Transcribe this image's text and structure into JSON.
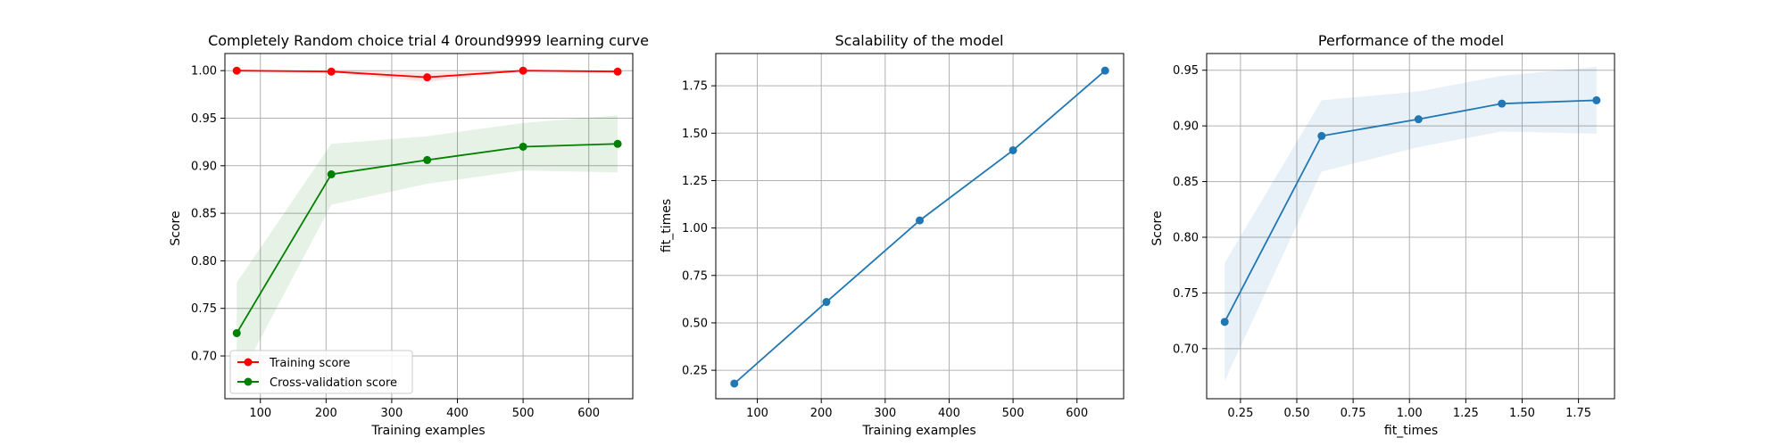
{
  "chart_data": [
    {
      "type": "line",
      "title": "Completely Random choice trial 4 0round9999 learning curve",
      "xlabel": "Training examples",
      "ylabel": "Score",
      "xlim": [
        46,
        667
      ],
      "ylim": [
        0.655,
        1.018
      ],
      "xticks": [
        100,
        200,
        300,
        400,
        500,
        600
      ],
      "xtick_labels": [
        "100",
        "200",
        "300",
        "400",
        "500",
        "600"
      ],
      "yticks": [
        0.7,
        0.75,
        0.8,
        0.85,
        0.9,
        0.95,
        1.0
      ],
      "ytick_labels": [
        "0.70",
        "0.75",
        "0.80",
        "0.85",
        "0.90",
        "0.95",
        "1.00"
      ],
      "grid": true,
      "legend": "lower-left",
      "series": [
        {
          "name": "Training score",
          "color": "#ff0000",
          "x": [
            64,
            208,
            354,
            500,
            644
          ],
          "y": [
            1.0,
            0.999,
            0.993,
            1.0,
            0.999
          ],
          "band_low": [
            1.0,
            0.998,
            0.988,
            1.0,
            0.999
          ],
          "band_high": [
            1.0,
            1.0,
            0.998,
            1.0,
            1.0
          ]
        },
        {
          "name": "Cross-validation score",
          "color": "#008000",
          "x": [
            64,
            208,
            354,
            500,
            644
          ],
          "y": [
            0.724,
            0.891,
            0.906,
            0.92,
            0.923
          ],
          "band_low": [
            0.671,
            0.859,
            0.881,
            0.895,
            0.893
          ],
          "band_high": [
            0.777,
            0.923,
            0.931,
            0.945,
            0.953
          ]
        }
      ]
    },
    {
      "type": "line",
      "title": "Scalability of the model",
      "xlabel": "Training examples",
      "ylabel": "fit_times",
      "xlim": [
        35,
        673
      ],
      "ylim": [
        0.1,
        1.92
      ],
      "xticks": [
        100,
        200,
        300,
        400,
        500,
        600
      ],
      "xtick_labels": [
        "100",
        "200",
        "300",
        "400",
        "500",
        "600"
      ],
      "yticks": [
        0.25,
        0.5,
        0.75,
        1.0,
        1.25,
        1.5,
        1.75
      ],
      "ytick_labels": [
        "0.25",
        "0.50",
        "0.75",
        "1.00",
        "1.25",
        "1.50",
        "1.75"
      ],
      "grid": true,
      "series": [
        {
          "color": "#1f77b4",
          "x": [
            64,
            208,
            354,
            500,
            644
          ],
          "y": [
            0.18,
            0.61,
            1.04,
            1.41,
            1.83
          ],
          "band_low": [
            0.18,
            0.61,
            1.04,
            1.41,
            1.83
          ],
          "band_high": [
            0.18,
            0.61,
            1.04,
            1.41,
            1.83
          ]
        }
      ]
    },
    {
      "type": "line",
      "title": "Performance of the model",
      "xlabel": "fit_times",
      "ylabel": "Score",
      "xlim": [
        0.1,
        1.91
      ],
      "ylim": [
        0.655,
        0.965
      ],
      "xticks": [
        0.25,
        0.5,
        0.75,
        1.0,
        1.25,
        1.5,
        1.75
      ],
      "xtick_labels": [
        "0.25",
        "0.50",
        "0.75",
        "1.00",
        "1.25",
        "1.50",
        "1.75"
      ],
      "yticks": [
        0.7,
        0.75,
        0.8,
        0.85,
        0.9,
        0.95
      ],
      "ytick_labels": [
        "0.70",
        "0.75",
        "0.80",
        "0.85",
        "0.90",
        "0.95"
      ],
      "grid": true,
      "series": [
        {
          "color": "#1f77b4",
          "x": [
            0.18,
            0.61,
            1.04,
            1.41,
            1.83
          ],
          "y": [
            0.724,
            0.891,
            0.906,
            0.92,
            0.923
          ],
          "band_low": [
            0.671,
            0.859,
            0.881,
            0.895,
            0.893
          ],
          "band_high": [
            0.777,
            0.923,
            0.931,
            0.945,
            0.953
          ]
        }
      ]
    }
  ]
}
